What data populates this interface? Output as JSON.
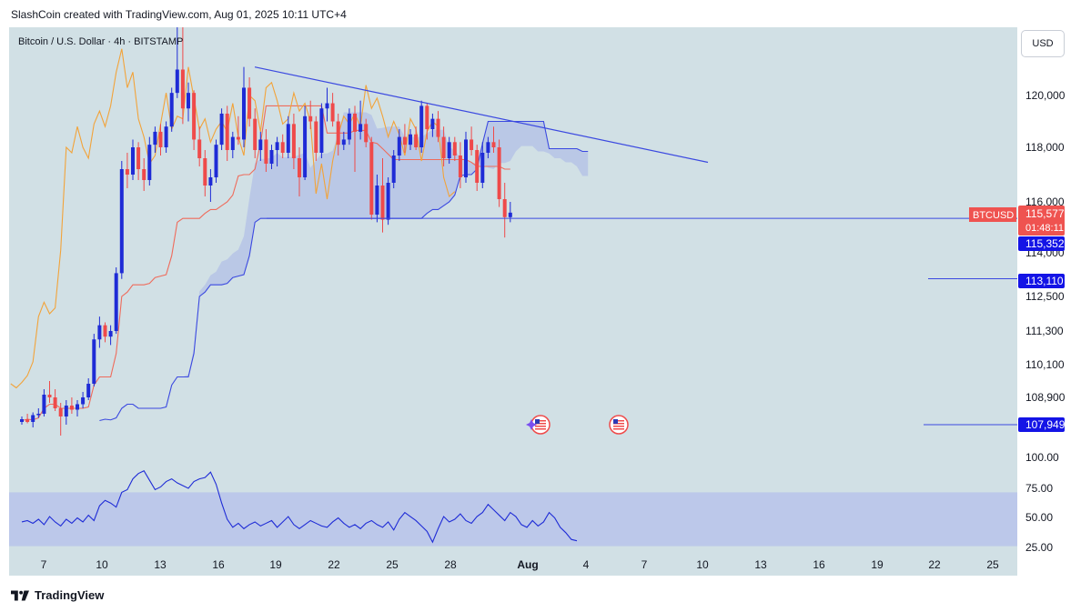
{
  "header": {
    "caption": "SlashCoin created with TradingView.com, Aug 01, 2025 10:11 UTC+4"
  },
  "symbol": {
    "label": "Bitcoin / U.S. Dollar · 4h · BITSTAMP"
  },
  "currency_button": "USD",
  "footer": {
    "brand": "TradingView"
  },
  "colors": {
    "background": "#d1e0e5",
    "candle_up": "#1e2bd6",
    "candle_down": "#ef4a4a",
    "trendline": "#3b49e0",
    "ichimoku_red": "#ef6b5b",
    "ichimoku_orange": "#f2a33a",
    "cloud_fill": "#b4c2e6",
    "rsi_band": "#bcc8ea",
    "rsi_line": "#1e2bd6",
    "last_price_tag": "#ef5350",
    "level_tag": "#1414e6"
  },
  "chart_data": {
    "type": "candlestick",
    "price_axis": {
      "labels": [
        "120,000",
        "118,000",
        "116,000",
        "114,000",
        "112,500",
        "111,300",
        "110,100",
        "108,900"
      ],
      "values": [
        120000,
        118000,
        116000,
        114000,
        112500,
        111300,
        110100,
        108900
      ]
    },
    "rsi_axis": {
      "labels": [
        "100.00",
        "75.00",
        "50.00",
        "25.00"
      ],
      "values": [
        100,
        75,
        50,
        25
      ],
      "band": [
        30,
        70
      ]
    },
    "x_axis": {
      "labels": [
        "7",
        "10",
        "13",
        "16",
        "19",
        "22",
        "25",
        "28",
        "Aug",
        "4",
        "7",
        "10",
        "13",
        "16",
        "19",
        "22",
        "25"
      ],
      "bold": [
        "Aug"
      ]
    },
    "last_price": {
      "symbol": "BTCUSD",
      "price": "115,577",
      "countdown": "01:48:11",
      "value": 115577
    },
    "levels": [
      {
        "label": "115,352",
        "value": 115352
      },
      {
        "label": "113,110",
        "value": 113110
      },
      {
        "label": "107,949",
        "value": 107949
      }
    ],
    "trendline": {
      "from": {
        "x": "Jul 17",
        "price": 121100
      },
      "to": {
        "x": "Aug 10",
        "price": 117450
      }
    },
    "events": [
      {
        "x": "Jul 30",
        "icon": "us-flag-icon"
      },
      {
        "x": "Aug 5",
        "icon": "us-flag-icon"
      }
    ],
    "rsi_series": [
      48,
      49,
      47,
      50,
      46,
      52,
      48,
      45,
      50,
      47,
      51,
      48,
      53,
      49,
      60,
      64,
      62,
      59,
      70,
      72,
      80,
      84,
      86,
      79,
      72,
      74,
      78,
      80,
      77,
      75,
      73,
      78,
      80,
      81,
      85,
      76,
      62,
      50,
      44,
      47,
      43,
      46,
      48,
      45,
      47,
      49,
      44,
      48,
      52,
      46,
      43,
      46,
      49,
      47,
      45,
      44,
      48,
      51,
      47,
      44,
      46,
      43,
      47,
      49,
      46,
      44,
      48,
      42,
      50,
      55,
      52,
      49,
      45,
      41,
      33,
      43,
      52,
      48,
      50,
      54,
      49,
      47,
      52,
      55,
      61,
      57,
      53,
      49,
      55,
      52,
      46,
      44,
      49,
      45,
      48,
      55,
      51,
      44,
      40,
      35,
      34
    ],
    "candles": [
      [
        108000,
        108200,
        107900,
        108100
      ],
      [
        108100,
        108300,
        107950,
        108000
      ],
      [
        108000,
        108350,
        107800,
        108250
      ],
      [
        108250,
        108500,
        108150,
        108300
      ],
      [
        108300,
        109200,
        108200,
        109000
      ],
      [
        109000,
        109500,
        108700,
        108900
      ],
      [
        108900,
        109200,
        108400,
        108500
      ],
      [
        108500,
        108700,
        107500,
        108200
      ],
      [
        108200,
        108800,
        107900,
        108600
      ],
      [
        108600,
        108900,
        108300,
        108450
      ],
      [
        108450,
        108800,
        108200,
        108650
      ],
      [
        108650,
        109100,
        108500,
        108900
      ],
      [
        108900,
        109600,
        108800,
        109400
      ],
      [
        109400,
        111200,
        109300,
        111000
      ],
      [
        111000,
        111800,
        110700,
        111500
      ],
      [
        111500,
        111600,
        110900,
        111100
      ],
      [
        111100,
        111500,
        110800,
        111300
      ],
      [
        111300,
        113500,
        111200,
        113300
      ],
      [
        113300,
        117500,
        113100,
        117200
      ],
      [
        117200,
        117800,
        116500,
        117000
      ],
      [
        117000,
        118300,
        116800,
        118000
      ],
      [
        118000,
        118200,
        116800,
        117200
      ],
      [
        117200,
        117600,
        116400,
        116800
      ],
      [
        116800,
        118400,
        116600,
        118100
      ],
      [
        118100,
        118800,
        117800,
        118600
      ],
      [
        118600,
        118900,
        117700,
        118000
      ],
      [
        118000,
        119000,
        117800,
        118800
      ],
      [
        118800,
        120300,
        118600,
        120100
      ],
      [
        120100,
        122900,
        119900,
        121000
      ],
      [
        121000,
        123200,
        118900,
        119500
      ],
      [
        119500,
        120500,
        119000,
        120100
      ],
      [
        120100,
        120200,
        117900,
        118300
      ],
      [
        118300,
        118800,
        117300,
        117600
      ],
      [
        117600,
        117900,
        116200,
        116600
      ],
      [
        116600,
        117200,
        116000,
        116900
      ],
      [
        116900,
        118300,
        116700,
        118100
      ],
      [
        118100,
        119500,
        117900,
        119300
      ],
      [
        119300,
        119600,
        117500,
        117900
      ],
      [
        117900,
        118600,
        117600,
        118400
      ],
      [
        118400,
        119200,
        118100,
        118300
      ],
      [
        118300,
        121100,
        118000,
        120300
      ],
      [
        120300,
        120700,
        118800,
        119100
      ],
      [
        119100,
        119500,
        117600,
        117900
      ],
      [
        117900,
        118600,
        117500,
        118300
      ],
      [
        118300,
        118700,
        117100,
        117400
      ],
      [
        117400,
        118100,
        117200,
        117900
      ],
      [
        117900,
        118400,
        117300,
        118200
      ],
      [
        118200,
        118500,
        117600,
        117800
      ],
      [
        117800,
        119200,
        117600,
        118900
      ],
      [
        118900,
        119300,
        117200,
        117600
      ],
      [
        117600,
        118000,
        116200,
        116900
      ],
      [
        116900,
        119600,
        116800,
        119200
      ],
      [
        119200,
        119800,
        118700,
        119000
      ],
      [
        119000,
        119200,
        117500,
        117800
      ],
      [
        117800,
        119700,
        117600,
        119500
      ],
      [
        119500,
        120300,
        119000,
        119700
      ],
      [
        119700,
        120100,
        118800,
        119000
      ],
      [
        119000,
        119300,
        117700,
        118100
      ],
      [
        118100,
        118600,
        117900,
        118300
      ],
      [
        118300,
        119500,
        118100,
        119300
      ],
      [
        119300,
        119600,
        117100,
        118600
      ],
      [
        118600,
        119800,
        118300,
        118900
      ],
      [
        118900,
        119100,
        118000,
        118200
      ],
      [
        118200,
        118400,
        115300,
        115500
      ],
      [
        115500,
        117000,
        115200,
        116600
      ],
      [
        116600,
        117600,
        114800,
        115300
      ],
      [
        115300,
        116900,
        115100,
        116700
      ],
      [
        116700,
        117900,
        116500,
        117700
      ],
      [
        117700,
        118700,
        117500,
        118400
      ],
      [
        118400,
        118900,
        117800,
        118100
      ],
      [
        118100,
        118700,
        117900,
        118500
      ],
      [
        118500,
        118800,
        117900,
        118000
      ],
      [
        118000,
        119800,
        117800,
        119600
      ],
      [
        119600,
        119700,
        118300,
        118700
      ],
      [
        118700,
        119300,
        118400,
        119100
      ],
      [
        119100,
        119400,
        118200,
        118400
      ],
      [
        118400,
        118800,
        117300,
        117600
      ],
      [
        117600,
        118400,
        117400,
        118200
      ],
      [
        118200,
        118400,
        117500,
        117700
      ],
      [
        117700,
        118200,
        116500,
        116900
      ],
      [
        116900,
        118600,
        116700,
        118300
      ],
      [
        118300,
        118800,
        117700,
        117900
      ],
      [
        117900,
        118100,
        116400,
        116700
      ],
      [
        116700,
        118200,
        116500,
        117800
      ],
      [
        117800,
        118400,
        117600,
        118200
      ],
      [
        118200,
        118800,
        117800,
        118000
      ],
      [
        118000,
        118300,
        115800,
        116100
      ],
      [
        116100,
        116700,
        114600,
        115400
      ],
      [
        115400,
        116000,
        115200,
        115577
      ]
    ]
  }
}
